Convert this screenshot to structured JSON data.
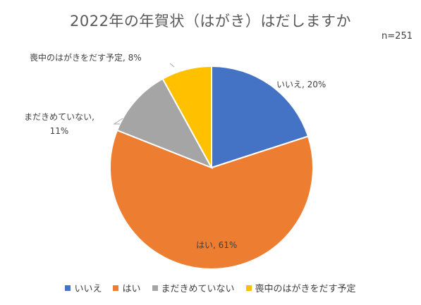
{
  "chart_data": {
    "type": "pie",
    "title": "2022年の年賀状（はがき）はだしますか",
    "note": "n=251",
    "categories": [
      "いいえ",
      "はい",
      "まだきめていない",
      "喪中のはがきをだす予定"
    ],
    "values": [
      20,
      61,
      11,
      8
    ],
    "unit": "%",
    "colors": [
      "#4472C4",
      "#ED7D31",
      "#A5A5A5",
      "#FFC000"
    ],
    "data_labels": [
      "いいえ, 20%",
      "はい, 61%",
      "まだきめていない, 11%",
      "喪中のはがきをだす予定, 8%"
    ],
    "legend_position": "bottom"
  }
}
